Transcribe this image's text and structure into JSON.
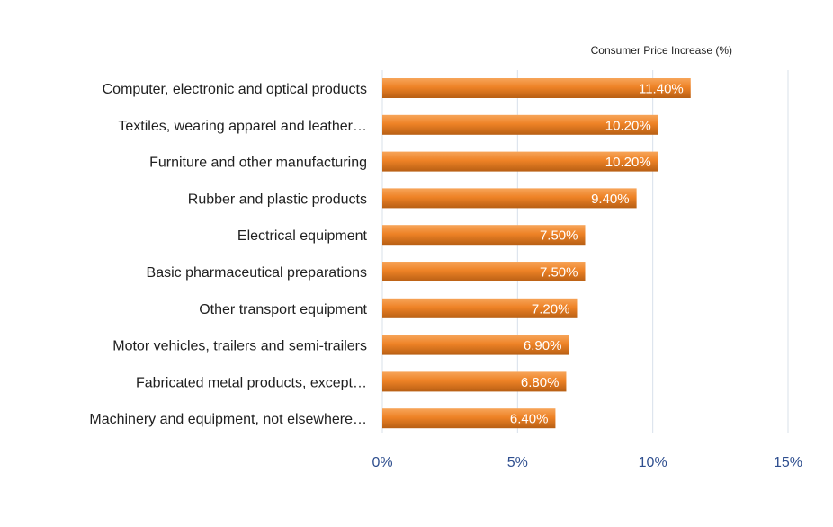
{
  "chart_data": {
    "type": "bar",
    "orientation": "horizontal",
    "legend": {
      "label": "Consumer Price Increase (%)",
      "placement": "top-right"
    },
    "categories": [
      "Computer, electronic and optical products",
      "Textiles, wearing apparel and leather…",
      "Furniture and other manufacturing",
      "Rubber and plastic products",
      "Electrical equipment",
      "Basic pharmaceutical preparations",
      "Other transport equipment",
      "Motor vehicles, trailers and semi-trailers",
      "Fabricated metal products, except…",
      "Machinery and equipment, not elsewhere…"
    ],
    "values": [
      11.4,
      10.2,
      10.2,
      9.4,
      7.5,
      7.5,
      7.2,
      6.9,
      6.8,
      6.4
    ],
    "data_labels": [
      "11.40%",
      "10.20%",
      "10.20%",
      "9.40%",
      "7.50%",
      "7.50%",
      "7.20%",
      "6.90%",
      "6.80%",
      "6.40%"
    ],
    "xlim": [
      0,
      15
    ],
    "x_ticks": [
      0,
      5,
      10,
      15
    ],
    "x_tick_labels": [
      "0%",
      "5%",
      "10%",
      "15%"
    ],
    "grid": true,
    "colors": {
      "bar": "#ee8226",
      "bar_highlight": "#f7a55a",
      "bar_shadow": "#b85f14",
      "grid": "#d8e0ea",
      "tick_text": "#2f4f8f"
    }
  }
}
